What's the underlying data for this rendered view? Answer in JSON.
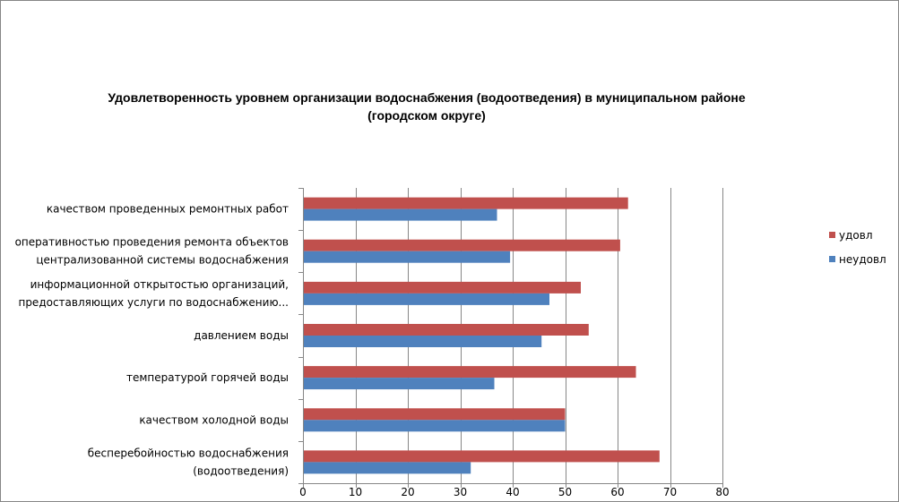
{
  "chart_data": {
    "type": "bar",
    "orientation": "horizontal",
    "title_lines": [
      "Удовлетворенность уровнем организации водоснабжения (водоотведения) в муниципальном районе",
      "(городском округе)"
    ],
    "categories": [
      {
        "lines": [
          "бесперебойностью  водоснабжения",
          "(водоотведения)"
        ]
      },
      {
        "lines": [
          "качеством холодной воды"
        ]
      },
      {
        "lines": [
          "температурой горячей воды"
        ]
      },
      {
        "lines": [
          "давлением  воды"
        ]
      },
      {
        "lines": [
          "информационной открытостью организаций,",
          "предоставляющих услуги по водоснабжению..."
        ]
      },
      {
        "lines": [
          "оперативностью  проведения  ремонта объектов",
          "централизованной системы водоснабжения"
        ]
      },
      {
        "lines": [
          "качеством  проведенных  ремонтных работ"
        ]
      }
    ],
    "series": [
      {
        "name": "удовл",
        "color": "#c0504d",
        "values": [
          68,
          50,
          63.5,
          54.5,
          53,
          60.5,
          62
        ]
      },
      {
        "name": "неудовл",
        "color": "#4f81bd",
        "values": [
          32,
          50,
          36.5,
          45.5,
          47,
          39.5,
          37
        ]
      }
    ],
    "xlim": [
      0,
      80
    ],
    "xticks": [
      0,
      10,
      20,
      30,
      40,
      50,
      60,
      70,
      80
    ],
    "grid": true,
    "legend_position": "right"
  }
}
